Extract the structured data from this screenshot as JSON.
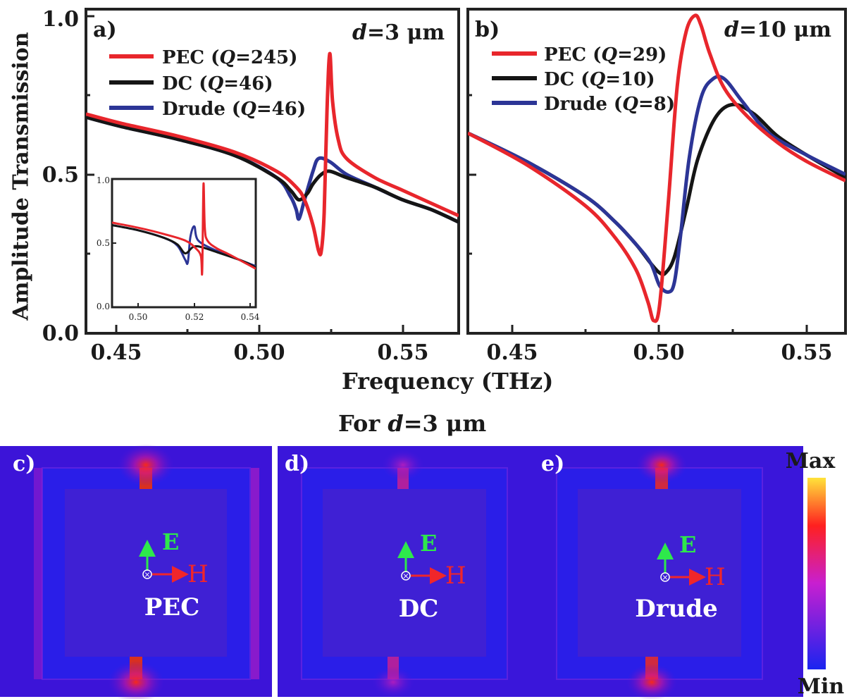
{
  "axis": {
    "ylabel": "Amplitude Transmission",
    "xlabel": "Frequency (THz)",
    "y_ticks": [
      "0.0",
      "0.5",
      "1.0"
    ],
    "x_ticks": [
      "0.45",
      "0.50",
      "0.55"
    ],
    "inset_y_ticks": [
      "0.0",
      "0.5",
      "1.0"
    ],
    "inset_x_ticks": [
      "0.50",
      "0.52",
      "0.54"
    ]
  },
  "colors": {
    "pec": "#e8262c",
    "dc": "#151515",
    "drude": "#2c3596"
  },
  "panel_a": {
    "letter": "a)",
    "d_prefix": "d",
    "d_value": "=3 μm",
    "legend": [
      {
        "base": "PEC (",
        "q": "Q",
        "rest": "=245)"
      },
      {
        "base": "DC (",
        "q": "Q",
        "rest": "=46)"
      },
      {
        "base": "Drude (",
        "q": "Q",
        "rest": "=46)"
      }
    ]
  },
  "panel_b": {
    "letter": "b)",
    "d_prefix": "d",
    "d_value": "=10 μm",
    "legend": [
      {
        "base": "PEC (",
        "q": "Q",
        "rest": "=29)"
      },
      {
        "base": "DC (",
        "q": "Q",
        "rest": "=10)"
      },
      {
        "base": "Drude (",
        "q": "Q",
        "rest": "=8)"
      }
    ]
  },
  "for_title": {
    "prefix": "For ",
    "d": "d",
    "rest": "=3 μm"
  },
  "fields": [
    {
      "letter": "c)",
      "material": "PEC"
    },
    {
      "letter": "d)",
      "material": "DC"
    },
    {
      "letter": "e)",
      "material": "Drude"
    }
  ],
  "field_labels": {
    "e": "E",
    "h": "H"
  },
  "colorbar": {
    "max": "Max",
    "min": "Min"
  },
  "chart_data": [
    {
      "type": "line",
      "panel": "a",
      "xlim": [
        0.437,
        0.57
      ],
      "ylim": [
        0.0,
        1.02
      ],
      "series": [
        {
          "name": "PEC (Q=245)",
          "x": [
            0.437,
            0.45,
            0.47,
            0.49,
            0.505,
            0.512,
            0.515,
            0.518,
            0.52,
            0.521,
            0.522,
            0.523,
            0.524,
            0.525,
            0.527,
            0.53,
            0.54,
            0.55,
            0.56,
            0.57
          ],
          "y": [
            0.69,
            0.66,
            0.62,
            0.57,
            0.51,
            0.46,
            0.42,
            0.34,
            0.26,
            0.26,
            0.38,
            0.7,
            0.88,
            0.73,
            0.61,
            0.55,
            0.49,
            0.45,
            0.41,
            0.37
          ]
        },
        {
          "name": "DC (Q=46)",
          "x": [
            0.437,
            0.45,
            0.47,
            0.49,
            0.505,
            0.51,
            0.513,
            0.516,
            0.518,
            0.521,
            0.524,
            0.53,
            0.54,
            0.55,
            0.56,
            0.57
          ],
          "y": [
            0.68,
            0.65,
            0.61,
            0.56,
            0.49,
            0.45,
            0.42,
            0.44,
            0.47,
            0.5,
            0.51,
            0.49,
            0.46,
            0.42,
            0.39,
            0.35
          ]
        },
        {
          "name": "Drude (Q=46)",
          "x": [
            0.437,
            0.45,
            0.47,
            0.49,
            0.505,
            0.51,
            0.512,
            0.513,
            0.515,
            0.518,
            0.52,
            0.524,
            0.53,
            0.54,
            0.55,
            0.56,
            0.57
          ],
          "y": [
            0.68,
            0.65,
            0.61,
            0.56,
            0.49,
            0.43,
            0.39,
            0.36,
            0.42,
            0.51,
            0.55,
            0.54,
            0.5,
            0.46,
            0.42,
            0.39,
            0.35
          ]
        }
      ]
    },
    {
      "type": "line",
      "panel": "a-inset",
      "xlim": [
        0.49,
        0.545
      ],
      "ylim": [
        0.0,
        1.0
      ],
      "series": [
        {
          "name": "PEC (Q=245)",
          "x": [
            0.49,
            0.5,
            0.51,
            0.518,
            0.522,
            0.524,
            0.5245,
            0.525,
            0.5255,
            0.5265,
            0.53,
            0.535,
            0.545
          ],
          "y": [
            0.66,
            0.62,
            0.57,
            0.52,
            0.46,
            0.4,
            0.28,
            0.96,
            0.62,
            0.52,
            0.46,
            0.41,
            0.3
          ]
        },
        {
          "name": "DC (Q=46)",
          "x": [
            0.49,
            0.5,
            0.51,
            0.515,
            0.518,
            0.521,
            0.524,
            0.53,
            0.54,
            0.545
          ],
          "y": [
            0.64,
            0.6,
            0.54,
            0.49,
            0.42,
            0.47,
            0.47,
            0.43,
            0.36,
            0.31
          ]
        },
        {
          "name": "Drude (Q=46)",
          "x": [
            0.49,
            0.5,
            0.51,
            0.515,
            0.518,
            0.519,
            0.52,
            0.5215,
            0.523,
            0.53,
            0.54,
            0.545
          ],
          "y": [
            0.64,
            0.6,
            0.54,
            0.48,
            0.37,
            0.35,
            0.55,
            0.63,
            0.52,
            0.44,
            0.36,
            0.32
          ]
        }
      ]
    },
    {
      "type": "line",
      "panel": "b",
      "xlim": [
        0.44,
        0.568
      ],
      "ylim": [
        0.0,
        1.02
      ],
      "series": [
        {
          "name": "PEC (Q=29)",
          "x": [
            0.44,
            0.46,
            0.48,
            0.49,
            0.497,
            0.501,
            0.503,
            0.505,
            0.508,
            0.511,
            0.514,
            0.517,
            0.519,
            0.522,
            0.527,
            0.535,
            0.545,
            0.555,
            0.568
          ],
          "y": [
            0.63,
            0.53,
            0.4,
            0.3,
            0.2,
            0.1,
            0.04,
            0.09,
            0.42,
            0.78,
            0.95,
            1.0,
            0.97,
            0.88,
            0.77,
            0.68,
            0.6,
            0.54,
            0.48
          ]
        },
        {
          "name": "DC (Q=10)",
          "x": [
            0.44,
            0.46,
            0.48,
            0.49,
            0.497,
            0.502,
            0.505,
            0.507,
            0.51,
            0.514,
            0.518,
            0.524,
            0.53,
            0.537,
            0.545,
            0.555,
            0.568
          ],
          "y": [
            0.63,
            0.54,
            0.43,
            0.35,
            0.28,
            0.22,
            0.19,
            0.19,
            0.24,
            0.39,
            0.55,
            0.68,
            0.72,
            0.69,
            0.62,
            0.56,
            0.49
          ]
        },
        {
          "name": "Drude (Q=8)",
          "x": [
            0.44,
            0.46,
            0.48,
            0.49,
            0.497,
            0.502,
            0.505,
            0.508,
            0.51,
            0.512,
            0.515,
            0.519,
            0.523,
            0.527,
            0.533,
            0.542,
            0.555,
            0.568
          ],
          "y": [
            0.63,
            0.54,
            0.43,
            0.35,
            0.28,
            0.22,
            0.15,
            0.13,
            0.16,
            0.3,
            0.55,
            0.74,
            0.8,
            0.8,
            0.73,
            0.63,
            0.56,
            0.5
          ]
        }
      ]
    }
  ]
}
